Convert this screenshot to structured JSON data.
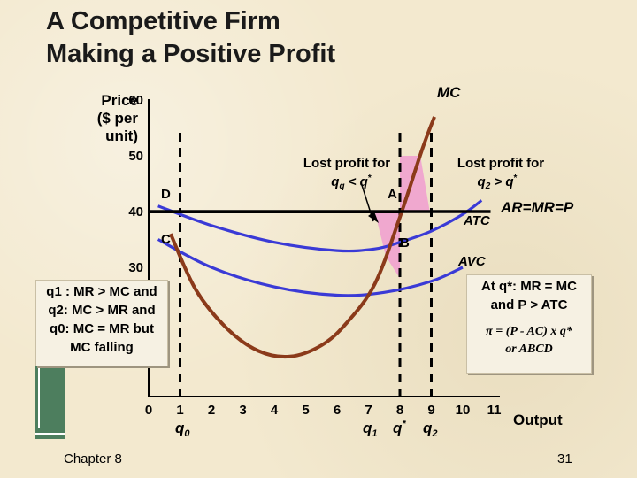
{
  "slide": {
    "title_line1": "A Competitive Firm",
    "title_line2": "Making a Positive Profit",
    "footer_left": "Chapter 8",
    "page_number": "31"
  },
  "chart_data": {
    "type": "line",
    "ylabel_lines": [
      "Price",
      "($ per",
      "unit)"
    ],
    "xlabel": "Output",
    "x_ticks": [
      0,
      1,
      2,
      3,
      4,
      5,
      6,
      7,
      8,
      9,
      10,
      11
    ],
    "y_ticks": [
      30,
      40,
      50,
      60
    ],
    "xlim": [
      0,
      11
    ],
    "ylim": [
      20,
      60
    ],
    "series": [
      {
        "name": "MC",
        "x": [
          0.7,
          1.5,
          2.5,
          3.5,
          4.5,
          5.5,
          6.3,
          7.2,
          8.0,
          8.7,
          9.1
        ],
        "y": [
          36,
          26,
          19,
          15,
          14,
          16,
          20,
          27,
          39,
          51,
          57
        ]
      },
      {
        "name": "ATC",
        "x": [
          0.3,
          2.0,
          4.0,
          6.0,
          7.2,
          8.0,
          9.0,
          10.0,
          10.6
        ],
        "y": [
          41,
          37.5,
          34.5,
          33,
          33.3,
          34.5,
          36.5,
          39.5,
          42
        ]
      },
      {
        "name": "AVC",
        "x": [
          0.3,
          2.0,
          4.0,
          6.0,
          7.5,
          9.0,
          10.0
        ],
        "y": [
          35,
          30,
          26.5,
          25,
          25.5,
          27.5,
          30
        ]
      },
      {
        "name": "AR=MR=P",
        "x": [
          0,
          11
        ],
        "y": [
          40,
          40
        ]
      }
    ],
    "vertical_guides_x": [
      1,
      8,
      9
    ],
    "annotations": {
      "mc_label": "MC",
      "atc_label": "ATC",
      "avc_label": "AVC",
      "demand_label": "AR=MR=P",
      "point_a": "A",
      "point_b": "B",
      "point_c": "C",
      "point_d": "D",
      "lost_left_line1": "Lost profit for",
      "lost_left_line2": "q",
      "lost_left_sub": "q",
      "lost_left_rest": " < q",
      "lost_right_line1": "Lost profit for",
      "lost_right_line2": "q",
      "lost_right_sub": "2",
      "lost_right_rest": " > q",
      "star": "*",
      "q0": "q",
      "q0_sub": "0",
      "q1": "q",
      "q1_sub": "1",
      "qstar": "q",
      "q2": "q",
      "q2_sub": "2"
    }
  },
  "notes": {
    "left_lines": [
      "q1 : MR > MC and",
      "q2: MC > MR and",
      "q0: MC = MR but",
      "MC falling"
    ],
    "right_line1": "At q*: MR = MC",
    "right_line2": "and P > ATC",
    "right_formula1": "π = (P - AC) x q*",
    "right_formula2": "or ABCD"
  },
  "colors": {
    "mc": "#8b3a1a",
    "cost_curves": "#3a3ad6",
    "lost_profit_fill": "#f0a8cf",
    "axis": "#000000"
  }
}
